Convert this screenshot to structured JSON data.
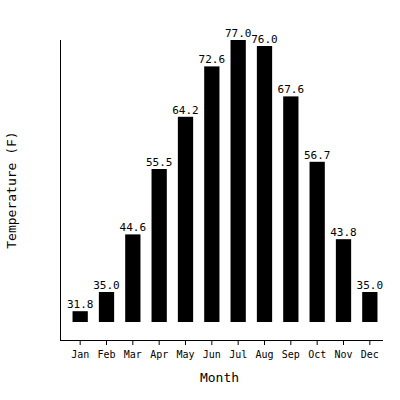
{
  "chart_data": {
    "type": "bar",
    "x_label": "Month",
    "y_label": "Temperature (F)",
    "categories": [
      "Jan",
      "Feb",
      "Mar",
      "Apr",
      "May",
      "Jun",
      "Jul",
      "Aug",
      "Sep",
      "Oct",
      "Nov",
      "Dec"
    ],
    "values": [
      31.8,
      35.0,
      44.6,
      55.5,
      64.2,
      72.6,
      77.0,
      76.0,
      67.6,
      56.7,
      43.8,
      35.0
    ],
    "value_labels": [
      "31.8",
      "35.0",
      "44.6",
      "55.5",
      "64.2",
      "72.6",
      "77.0",
      "76.0",
      "67.6",
      "56.7",
      "43.8",
      "35.0"
    ],
    "color": "#000000",
    "ylim": [
      30,
      77
    ],
    "grid": false,
    "data_labels": true,
    "tick_labels": "x"
  }
}
